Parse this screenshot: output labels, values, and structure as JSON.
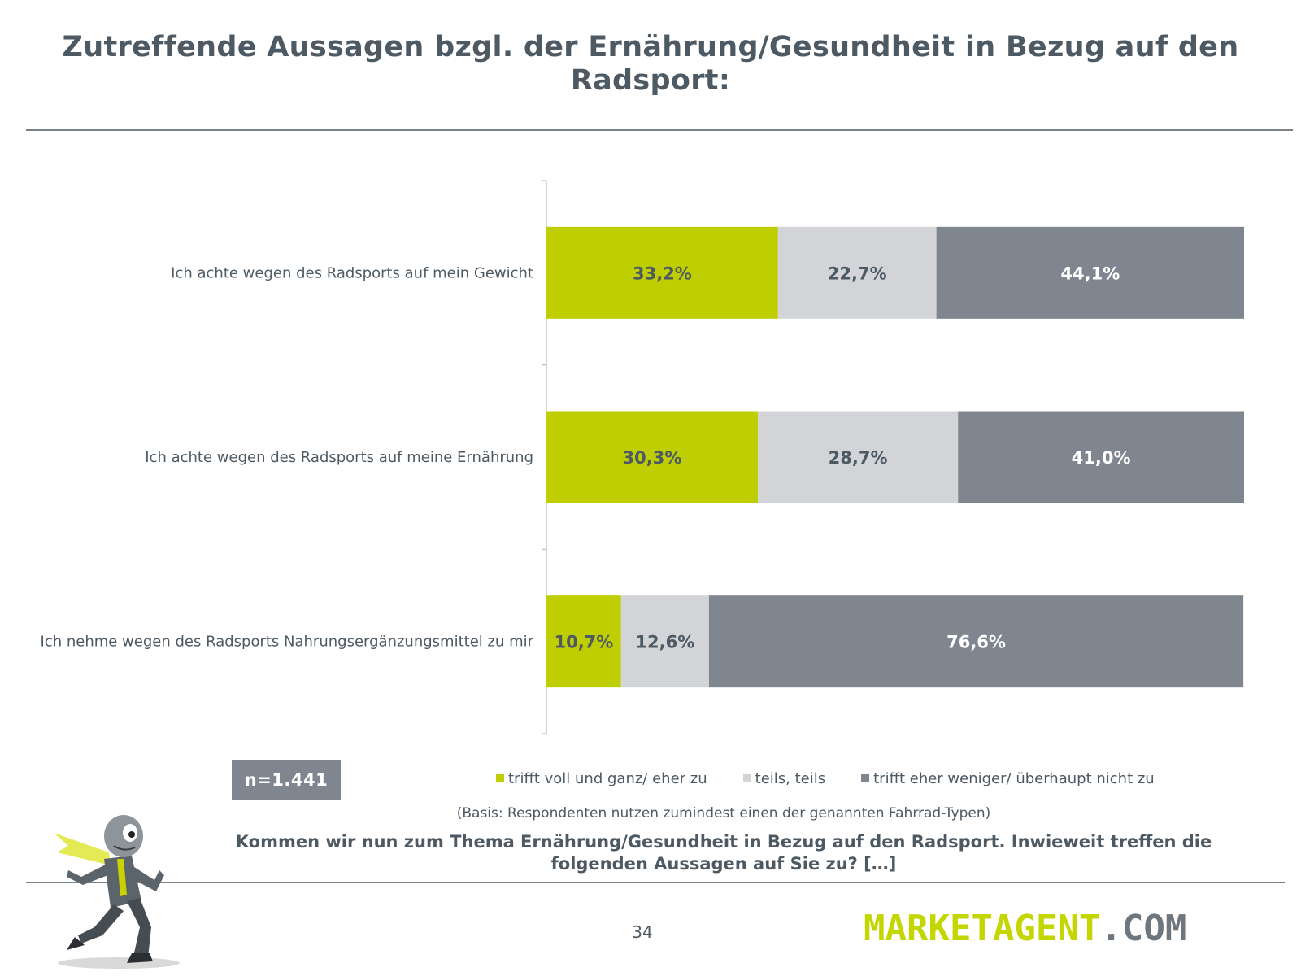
{
  "title": "Zutreffende Aussagen bzgl. der Ernährung/Gesundheit in Bezug auf den Radsport:",
  "colors": {
    "green": "#bfce00",
    "light_gray": "#d2d4d7",
    "dark_gray": "#7f868f",
    "text": "#4d5963"
  },
  "chart_data": {
    "type": "bar",
    "orientation": "horizontal",
    "stacked": true,
    "value_unit": "%",
    "xlim": [
      0,
      100
    ],
    "categories": [
      "Ich achte wegen des Radsports auf mein Gewicht",
      "Ich achte wegen des Radsports auf meine Ernährung",
      "Ich nehme wegen des Radsports Nahrungsergänzungsmittel zu mir"
    ],
    "series": [
      {
        "name": "trifft voll und ganz/ eher zu",
        "color": "#bfce00",
        "label_color": "#4d5963",
        "values": [
          33.2,
          30.3,
          10.7
        ],
        "labels": [
          "33,2%",
          "30,3%",
          "10,7%"
        ]
      },
      {
        "name": "teils, teils",
        "color": "#d2d4d7",
        "label_color": "#4d5963",
        "values": [
          22.7,
          28.7,
          12.6
        ],
        "labels": [
          "22,7%",
          "28,7%",
          "12,6%"
        ]
      },
      {
        "name": "trifft eher weniger/ überhaupt nicht zu",
        "color": "#7f868f",
        "label_color": "#ffffff",
        "values": [
          44.1,
          41.0,
          76.6
        ],
        "labels": [
          "44,1%",
          "41,0%",
          "76,6%"
        ]
      }
    ],
    "legend_position": "bottom",
    "grid": false
  },
  "sample_size": "n=1.441",
  "basis": "(Basis: Respondenten nutzen zumindest einen der genannten Fahrrad-Typen)",
  "question": "Kommen wir nun zum Thema Ernährung/Gesundheit in Bezug auf den Radsport. Inwieweit treffen die folgenden Aussagen auf Sie zu? […]",
  "page_number": "34",
  "brand": {
    "part1": "MARKETAGENT",
    "part2": ".COM"
  }
}
